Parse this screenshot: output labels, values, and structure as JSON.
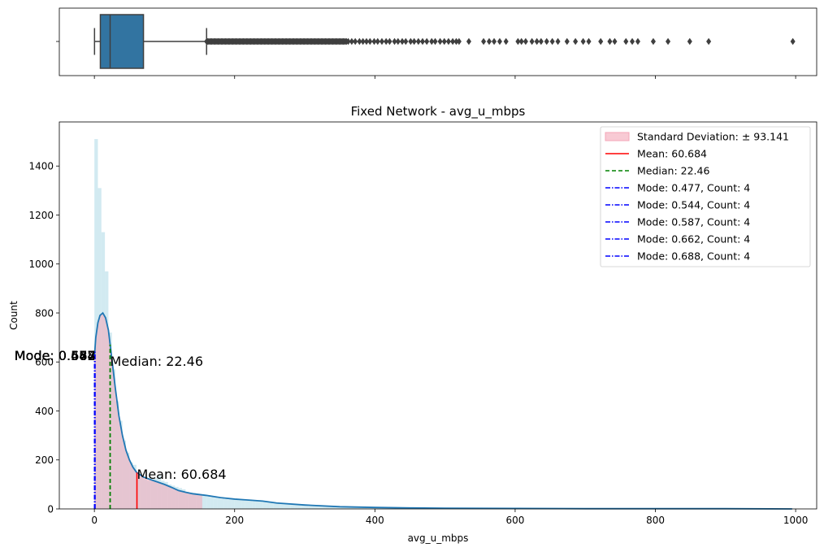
{
  "chart_data": [
    {
      "type": "box",
      "box": {
        "min": 0.2,
        "q1": 8.5,
        "median": 22.46,
        "q3": 70.0,
        "whisker_high": 160.0
      },
      "outliers_dense_range": [
        160,
        360
      ],
      "outliers": [
        362,
        367,
        372,
        378,
        383,
        388,
        393,
        399,
        404,
        410,
        416,
        421,
        428,
        433,
        439,
        444,
        451,
        456,
        462,
        468,
        474,
        481,
        486,
        493,
        499,
        505,
        511,
        516,
        520,
        534,
        555,
        563,
        570,
        578,
        587,
        604,
        609,
        615,
        624,
        631,
        637,
        645,
        653,
        661,
        674,
        686,
        697,
        705,
        722,
        735,
        742,
        758,
        767,
        775,
        797,
        818,
        849,
        876,
        996
      ],
      "xlim": [
        -50,
        1030
      ],
      "xticks": [
        0,
        200,
        400,
        600,
        800,
        1000
      ],
      "color": "#3274a1"
    },
    {
      "type": "histogram",
      "title": "Fixed Network - avg_u_mbps",
      "xlabel": "avg_u_mbps",
      "ylabel": "Count",
      "xlim": [
        -50,
        1030
      ],
      "ylim": [
        0,
        1580
      ],
      "xticks": [
        0,
        200,
        400,
        600,
        800,
        1000
      ],
      "yticks": [
        0,
        200,
        400,
        600,
        800,
        1000,
        1200,
        1400
      ],
      "bin_width": 5,
      "bins_start": 0,
      "counts": [
        1510,
        1310,
        1130,
        970,
        720,
        570,
        440,
        360,
        280,
        230,
        190,
        180,
        140,
        130,
        120,
        115,
        120,
        125,
        135,
        115,
        110,
        100,
        95,
        90,
        85,
        80,
        70,
        68,
        65,
        62,
        58,
        55,
        50,
        48,
        46,
        44,
        42,
        40,
        39,
        38,
        37,
        36,
        35,
        34,
        33,
        32,
        32,
        31,
        30,
        28,
        26,
        24,
        22,
        21,
        20,
        19,
        18,
        17,
        16,
        15,
        14,
        13,
        12,
        12,
        11,
        10,
        10,
        9,
        9,
        8,
        8,
        8,
        7,
        7,
        7,
        6,
        6,
        6,
        5,
        5,
        5,
        5,
        4,
        4,
        4,
        4,
        4,
        3,
        3,
        3,
        3,
        3,
        3,
        3,
        2,
        2,
        2,
        2,
        2,
        2,
        2,
        2,
        2,
        2,
        2,
        2,
        2,
        1,
        1,
        1,
        1,
        1,
        1,
        1,
        1,
        1,
        1,
        1,
        1,
        1,
        1,
        1,
        1,
        1,
        1,
        1,
        1,
        1,
        1,
        1,
        1,
        1,
        1,
        1,
        1,
        1,
        1,
        1,
        1,
        1,
        1,
        1,
        1,
        1,
        1,
        1,
        1,
        1,
        1,
        1,
        1,
        1,
        1,
        1,
        1,
        1,
        1,
        1,
        1,
        1,
        1,
        1,
        1,
        1,
        1,
        1,
        1,
        1,
        1,
        1,
        1,
        1,
        1,
        1,
        1,
        1,
        1,
        1,
        1,
        1,
        1,
        1,
        1,
        1,
        1,
        1,
        1,
        1,
        1,
        1,
        1,
        1,
        1,
        1,
        1,
        1,
        1,
        1,
        1,
        1
      ],
      "kde": {
        "x": [
          0,
          2,
          5,
          8,
          12,
          16,
          20,
          25,
          30,
          35,
          40,
          45,
          50,
          55,
          60,
          70,
          80,
          90,
          100,
          110,
          120,
          130,
          140,
          160,
          180,
          200,
          220,
          240,
          260,
          300,
          350,
          400,
          450,
          500,
          600,
          700,
          800,
          900,
          995
        ],
        "y": [
          620,
          700,
          760,
          790,
          800,
          780,
          730,
          610,
          490,
          380,
          300,
          240,
          200,
          170,
          150,
          130,
          120,
          110,
          100,
          88,
          75,
          68,
          62,
          55,
          46,
          40,
          36,
          32,
          24,
          16,
          9,
          6,
          4,
          3,
          2,
          1,
          1,
          1,
          0
        ]
      },
      "std_band": {
        "x_range": [
          0,
          153.825
        ],
        "label": "Standard Deviation: ± 93.141"
      },
      "mean": {
        "value": 60.684,
        "label": "Mean: 60.684",
        "annotation": "Mean: 60.684"
      },
      "median": {
        "value": 22.46,
        "label": "Median: 22.46",
        "annotation": "Median: 22.46"
      },
      "modes": [
        {
          "value": 0.477,
          "label": "Mode: 0.477, Count: 4",
          "annotation": "Mode: 0.477"
        },
        {
          "value": 0.544,
          "label": "Mode: 0.544, Count: 4",
          "annotation": "Mode: 0.544"
        },
        {
          "value": 0.587,
          "label": "Mode: 0.587, Count: 4",
          "annotation": "Mode: 0.587"
        },
        {
          "value": 0.662,
          "label": "Mode: 0.662, Count: 4",
          "annotation": "Mode: 0.662"
        },
        {
          "value": 0.688,
          "label": "Mode: 0.688, Count: 4",
          "annotation": "Mode: 0.688"
        }
      ],
      "legend_position": "upper-right",
      "colors": {
        "hist": "#add8e6",
        "kde": "#1f77b4",
        "std_band": "#f4a6b7",
        "mean": "#ff0000",
        "median": "#008000",
        "mode": "#0000ff"
      }
    }
  ]
}
